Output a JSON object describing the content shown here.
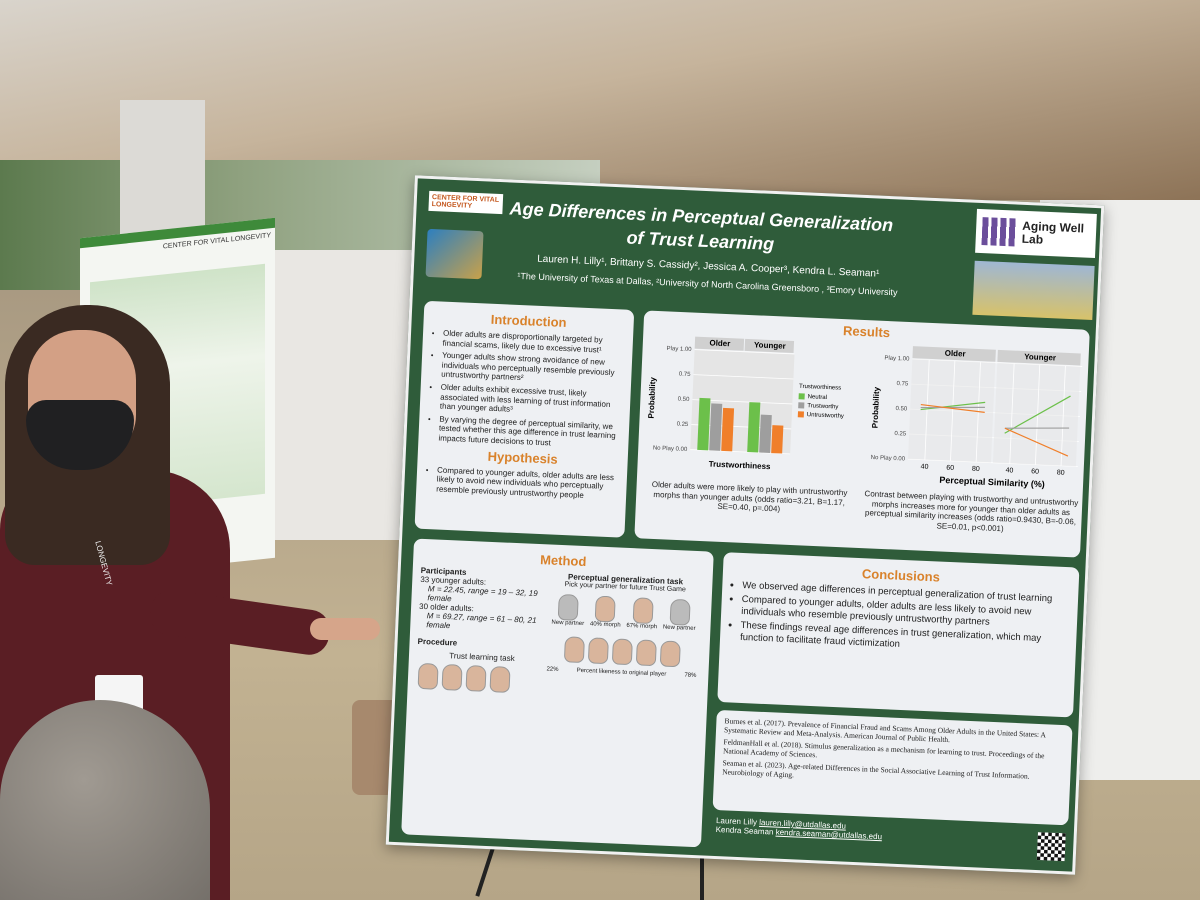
{
  "side_poster": {
    "logo": "CENTER FOR VITAL LONGEVITY"
  },
  "lanyard": "LONGEVITY",
  "poster": {
    "logo_left": "CENTER FOR VITAL LONGEVITY",
    "title": "Age Differences in Perceptual Generalization of Trust Learning",
    "authors": "Lauren H. Lilly¹, Brittany S. Cassidy², Jessica A. Cooper³, Kendra L. Seaman¹",
    "affiliations": "¹The University of Texas at Dallas, ²University of North Carolina Greensboro , ³Emory University",
    "logo_right": "Aging Well Lab",
    "introduction": {
      "heading": "Introduction",
      "bullets": [
        "Older adults are disproportionally targeted by financial scams, likely due to excessive trust¹",
        "Younger adults show strong avoidance of new individuals who perceptually resemble previously untrustworthy partners²",
        "Older adults exhibit excessive trust, likely associated with less learning of trust information than younger adults³",
        "By varying the degree of perceptual similarity, we tested whether this age difference in trust learning impacts future decisions to trust"
      ]
    },
    "hypothesis": {
      "heading": "Hypothesis",
      "bullets": [
        "Compared to younger adults, older adults are less likely to avoid new individuals who perceptually resemble previously untrustworthy people"
      ]
    },
    "method": {
      "heading": "Method",
      "participants": "Participants",
      "groups": [
        "33 younger adults:",
        "M = 22.45, range = 19 – 32, 19 female",
        "30 older adults:",
        "M = 69.27, range = 61 – 80, 21 female"
      ],
      "procedure": "Procedure",
      "task1": "Trust learning task",
      "task2": "Perceptual generalization task",
      "prompt": "Pick your partner for future Trust Game",
      "labels": [
        "New partner",
        "40% morph",
        "67% morph",
        "New partner"
      ],
      "scale_low": "22%",
      "scale_label": "Percent likeness to original player",
      "scale_high": "78%"
    },
    "results": {
      "heading": "Results",
      "chart1": {
        "type": "bar",
        "y_label": "Probability",
        "x_label": "Trustworthiness",
        "legend_title": "Trustworthiness",
        "categories": [
          "Older",
          "Younger"
        ],
        "series": [
          {
            "name": "Neutral",
            "color": "#6cc04a",
            "values": [
              0.52,
              0.5
            ]
          },
          {
            "name": "Trustworthy",
            "color": "#9e9e9e",
            "values": [
              0.47,
              0.38
            ]
          },
          {
            "name": "Untrustworthy",
            "color": "#f07f2a",
            "values": [
              0.43,
              0.28
            ]
          }
        ],
        "ylim": [
          0,
          1
        ],
        "yticks": [
          {
            "value": 0,
            "label": "No Play 0.00"
          },
          {
            "value": 0.25,
            "label": "0.25"
          },
          {
            "value": 0.5,
            "label": "0.50"
          },
          {
            "value": 0.75,
            "label": "0.75"
          },
          {
            "value": 1,
            "label": "Play 1.00"
          }
        ],
        "caption": "Older adults were more likely to play with untrustworthy morphs than younger adults (odds ratio=3.21, B=1.17, SE=0.40, p=.004)"
      },
      "chart2": {
        "type": "line",
        "y_label": "Probability",
        "x_label": "Perceptual Similarity (%)",
        "x": [
          35,
          85
        ],
        "xlim": [
          30,
          90
        ],
        "xticks": [
          40,
          60,
          80
        ],
        "ylim": [
          0,
          1
        ],
        "yticks": [
          {
            "value": 0,
            "label": "No Play 0.00"
          },
          {
            "value": 0.25,
            "label": "0.25"
          },
          {
            "value": 0.5,
            "label": "0.50"
          },
          {
            "value": 0.75,
            "label": "0.75"
          },
          {
            "value": 1,
            "label": "Play 1.00"
          }
        ],
        "panels": [
          {
            "facet": "Older",
            "series": [
              {
                "color": "#6cc04a",
                "values": [
                  0.5,
                  0.6
                ]
              },
              {
                "color": "#9e9e9e",
                "values": [
                  0.52,
                  0.55
                ]
              },
              {
                "color": "#f07f2a",
                "values": [
                  0.55,
                  0.5
                ]
              }
            ]
          },
          {
            "facet": "Younger",
            "series": [
              {
                "color": "#6cc04a",
                "values": [
                  0.3,
                  0.7
                ]
              },
              {
                "color": "#9e9e9e",
                "values": [
                  0.35,
                  0.38
                ]
              },
              {
                "color": "#f07f2a",
                "values": [
                  0.35,
                  0.1
                ]
              }
            ]
          }
        ],
        "caption": "Contrast between playing with trustworthy and untrustworthy morphs increases more for younger than older adults as perceptual similarity increases (odds ratio=0.9430, B=-0.06, SE=0.01, p<0.001)"
      }
    },
    "conclusions": {
      "heading": "Conclusions",
      "bullets": [
        "We observed age differences in perceptual generalization of trust learning",
        "Compared to younger adults, older adults are less likely to avoid new individuals who resemble previously untrustworthy partners",
        "These findings reveal age differences in trust generalization, which may function to facilitate fraud victimization"
      ]
    },
    "references": [
      "Burnes et al. (2017). Prevalence of Financial Fraud and Scams Among Older Adults in the United States: A Systematic Review and Meta-Analysis. American Journal of Public Health.",
      "FeldmanHall et al. (2018). Stimulus generalization as a mechanism for learning to trust. Proceedings of the National Academy of Sciences.",
      "Seaman et al. (2023). Age-related Differences in the Social Associative Learning of Trust Information. Neurobiology of Aging."
    ],
    "contact": [
      {
        "name": "Lauren Lilly",
        "email": "lauren.lilly@utdallas.edu"
      },
      {
        "name": "Kendra Seaman",
        "email": "kendra.seaman@utdallas.edu"
      }
    ]
  }
}
